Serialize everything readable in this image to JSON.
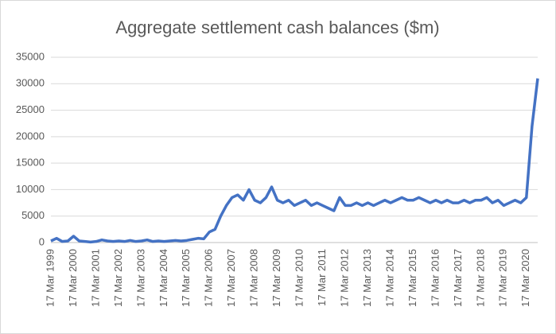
{
  "chart_data": {
    "type": "line",
    "title": "Aggregate settlement cash balances ($m)",
    "categories": [
      "17 Mar 1999",
      null,
      null,
      null,
      "17 Mar 2000",
      null,
      null,
      null,
      "17 Mar 2001",
      null,
      null,
      null,
      "17 Mar 2002",
      null,
      null,
      null,
      "17 Mar 2003",
      null,
      null,
      null,
      "17 Mar 2004",
      null,
      null,
      null,
      "17 Mar 2005",
      null,
      null,
      null,
      "17 Mar 2006",
      null,
      null,
      null,
      "17 Mar 2007",
      null,
      null,
      null,
      "17 Mar 2008",
      null,
      null,
      null,
      "17 Mar 2009",
      null,
      null,
      null,
      "17 Mar 2010",
      null,
      null,
      null,
      "17 Mar 2011",
      null,
      null,
      null,
      "17 Mar 2012",
      null,
      null,
      null,
      "17 Mar 2013",
      null,
      null,
      null,
      "17 Mar 2014",
      null,
      null,
      null,
      "17 Mar 2015",
      null,
      null,
      null,
      "17 Mar 2016",
      null,
      null,
      null,
      "17 Mar 2017",
      null,
      null,
      null,
      "17 Mar 2018",
      null,
      null,
      null,
      "17 Mar 2019",
      null,
      null,
      null,
      "17 Mar 2020",
      null,
      null
    ],
    "values": [
      300,
      800,
      200,
      300,
      1200,
      300,
      200,
      100,
      200,
      500,
      300,
      200,
      300,
      200,
      400,
      200,
      300,
      500,
      200,
      300,
      200,
      300,
      400,
      300,
      400,
      600,
      800,
      700,
      2000,
      2500,
      5000,
      7000,
      8500,
      9000,
      8000,
      10000,
      8000,
      7500,
      8500,
      10500,
      8000,
      7500,
      8000,
      7000,
      7500,
      8000,
      7000,
      7500,
      7000,
      6500,
      6000,
      8500,
      7000,
      7000,
      7500,
      7000,
      7500,
      7000,
      7500,
      8000,
      7500,
      8000,
      8500,
      8000,
      8000,
      8500,
      8000,
      7500,
      8000,
      7500,
      8000,
      7500,
      7500,
      8000,
      7500,
      8000,
      8000,
      8500,
      7500,
      8000,
      7000,
      7500,
      8000,
      7500,
      8500,
      22000,
      31000
    ],
    "color": "#4472c4",
    "ylim": [
      0,
      35000
    ],
    "yticks": [
      0,
      5000,
      10000,
      15000,
      20000,
      25000,
      30000,
      35000
    ],
    "grid": true
  }
}
